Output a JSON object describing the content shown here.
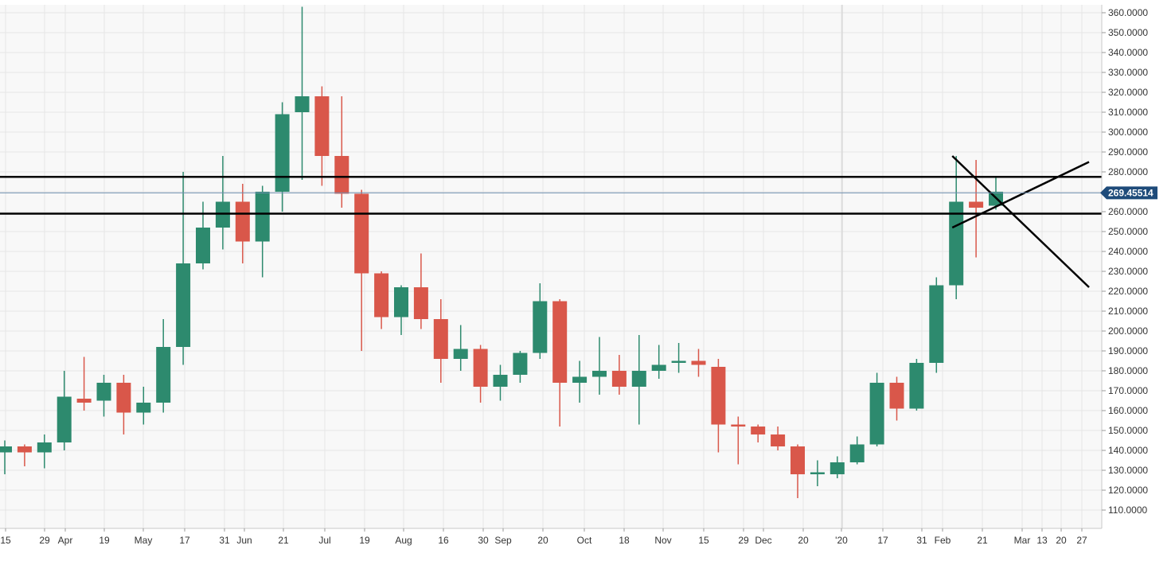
{
  "chart_data": {
    "type": "candlestick",
    "y_axis": {
      "min": 100,
      "max": 365,
      "tick_labels": [
        "110.0000",
        "120.0000",
        "130.0000",
        "140.0000",
        "150.0000",
        "160.0000",
        "170.0000",
        "180.0000",
        "190.0000",
        "200.0000",
        "210.0000",
        "220.0000",
        "230.0000",
        "240.0000",
        "250.0000",
        "260.0000",
        "270.0000",
        "280.0000",
        "290.0000",
        "300.0000",
        "310.0000",
        "320.0000",
        "330.0000",
        "340.0000",
        "350.0000",
        "360.0000"
      ]
    },
    "x_axis_labels": [
      "15",
      "29",
      "Apr",
      "19",
      "May",
      "17",
      "31",
      "Jun",
      "21",
      "Jul",
      "19",
      "Aug",
      "16",
      "30",
      "Sep",
      "20",
      "Oct",
      "18",
      "Nov",
      "15",
      "29",
      "Dec",
      "20",
      "'20",
      "17",
      "31",
      "Feb",
      "21",
      "Mar",
      "13",
      "20",
      "27"
    ],
    "current_price": {
      "label": "269.45514",
      "value": 269.45514,
      "color": "#1e4b7a"
    },
    "colors": {
      "up": "#2d8a6e",
      "down": "#d9574a",
      "grid": "#e6e6e6",
      "background": "#f8f8f8",
      "annotation": "#000000"
    },
    "candles": [
      {
        "o": 139,
        "h": 145,
        "l": 128,
        "c": 142
      },
      {
        "o": 142,
        "h": 143,
        "l": 132,
        "c": 139
      },
      {
        "o": 139,
        "h": 148,
        "l": 131,
        "c": 144
      },
      {
        "o": 144,
        "h": 180,
        "l": 140,
        "c": 167
      },
      {
        "o": 166,
        "h": 187,
        "l": 160,
        "c": 164
      },
      {
        "o": 165,
        "h": 178,
        "l": 157,
        "c": 174
      },
      {
        "o": 174,
        "h": 178,
        "l": 148,
        "c": 159
      },
      {
        "o": 159,
        "h": 172,
        "l": 153,
        "c": 164
      },
      {
        "o": 164,
        "h": 206,
        "l": 159,
        "c": 192
      },
      {
        "o": 192,
        "h": 280,
        "l": 183,
        "c": 234
      },
      {
        "o": 234,
        "h": 265,
        "l": 231,
        "c": 252
      },
      {
        "o": 252,
        "h": 288,
        "l": 241,
        "c": 265
      },
      {
        "o": 265,
        "h": 274,
        "l": 234,
        "c": 245
      },
      {
        "o": 245,
        "h": 273,
        "l": 227,
        "c": 270
      },
      {
        "o": 270,
        "h": 315,
        "l": 260,
        "c": 309
      },
      {
        "o": 310,
        "h": 363,
        "l": 276,
        "c": 318
      },
      {
        "o": 318,
        "h": 323,
        "l": 273,
        "c": 288
      },
      {
        "o": 288,
        "h": 318,
        "l": 262,
        "c": 269
      },
      {
        "o": 269,
        "h": 271,
        "l": 190,
        "c": 229
      },
      {
        "o": 229,
        "h": 230,
        "l": 201,
        "c": 207
      },
      {
        "o": 207,
        "h": 223,
        "l": 198,
        "c": 222
      },
      {
        "o": 222,
        "h": 239,
        "l": 201,
        "c": 206
      },
      {
        "o": 206,
        "h": 216,
        "l": 174,
        "c": 186
      },
      {
        "o": 186,
        "h": 203,
        "l": 180,
        "c": 191
      },
      {
        "o": 191,
        "h": 193,
        "l": 164,
        "c": 172
      },
      {
        "o": 172,
        "h": 183,
        "l": 165,
        "c": 178
      },
      {
        "o": 178,
        "h": 190,
        "l": 174,
        "c": 189
      },
      {
        "o": 189,
        "h": 224,
        "l": 186,
        "c": 215
      },
      {
        "o": 215,
        "h": 216,
        "l": 152,
        "c": 174
      },
      {
        "o": 174,
        "h": 185,
        "l": 164,
        "c": 177
      },
      {
        "o": 177,
        "h": 197,
        "l": 168,
        "c": 180
      },
      {
        "o": 180,
        "h": 188,
        "l": 168,
        "c": 172
      },
      {
        "o": 172,
        "h": 198,
        "l": 153,
        "c": 180
      },
      {
        "o": 180,
        "h": 193,
        "l": 176,
        "c": 183
      },
      {
        "o": 184,
        "h": 194,
        "l": 179,
        "c": 185
      },
      {
        "o": 185,
        "h": 191,
        "l": 177,
        "c": 183
      },
      {
        "o": 182,
        "h": 186,
        "l": 139,
        "c": 153
      },
      {
        "o": 153,
        "h": 157,
        "l": 133,
        "c": 152
      },
      {
        "o": 152,
        "h": 153,
        "l": 144,
        "c": 148
      },
      {
        "o": 148,
        "h": 152,
        "l": 140,
        "c": 142
      },
      {
        "o": 142,
        "h": 143,
        "l": 116,
        "c": 128
      },
      {
        "o": 128,
        "h": 135,
        "l": 122,
        "c": 129
      },
      {
        "o": 128,
        "h": 137,
        "l": 126,
        "c": 134
      },
      {
        "o": 134,
        "h": 147,
        "l": 133,
        "c": 143
      },
      {
        "o": 143,
        "h": 179,
        "l": 142,
        "c": 174
      },
      {
        "o": 174,
        "h": 177,
        "l": 155,
        "c": 161
      },
      {
        "o": 161,
        "h": 186,
        "l": 160,
        "c": 184
      },
      {
        "o": 184,
        "h": 227,
        "l": 179,
        "c": 223
      },
      {
        "o": 223,
        "h": 288,
        "l": 216,
        "c": 265
      },
      {
        "o": 265,
        "h": 286,
        "l": 237,
        "c": 262
      },
      {
        "o": 263,
        "h": 277,
        "l": 261,
        "c": 270
      }
    ],
    "annotations": {
      "horizontal_lines": [
        277.5,
        259
      ],
      "trend_lines": [
        {
          "from": {
            "candle": 47.8,
            "value": 288
          },
          "to": {
            "candle": 54.7,
            "value": 222
          }
        },
        {
          "from": {
            "candle": 47.8,
            "value": 252
          },
          "to": {
            "candle": 54.7,
            "value": 285
          }
        }
      ]
    }
  }
}
